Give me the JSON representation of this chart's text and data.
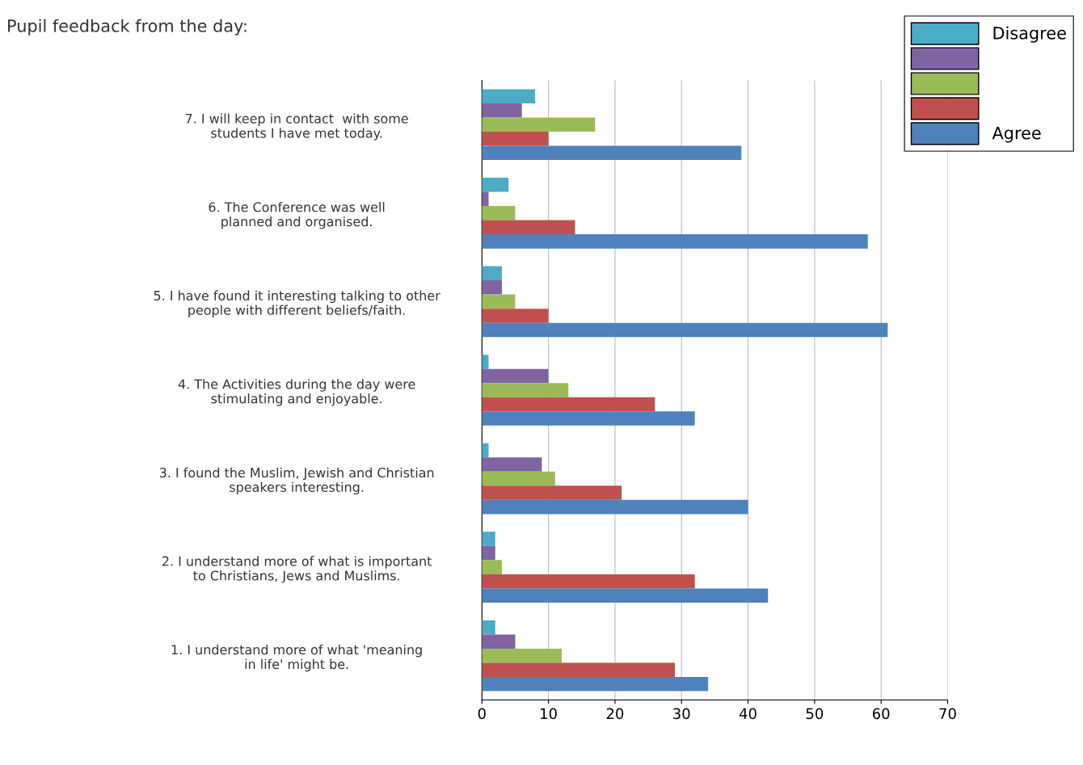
{
  "chart_data": {
    "type": "bar",
    "orientation": "horizontal",
    "title": "Pupil feedback from the day:",
    "categories": [
      "7. I will keep in contact  with some students I have met today.",
      "6. The Conference was well planned and organised.",
      "5. I have found it interesting talking to other people with different beliefs/faith.",
      "4. The Activities during the day were stimulating and enjoyable.",
      "3. I found the Muslim, Jewish and Christian speakers interesting.",
      "2. I understand more of what is important to Christians, Jews and Muslims.",
      "1. I understand more of what 'meaning in life' might be."
    ],
    "series": [
      {
        "name": "Disagree",
        "color": "#4bacc6",
        "values": [
          8,
          4,
          3,
          1,
          1,
          2,
          2
        ]
      },
      {
        "color": "#8064a2",
        "values": [
          6,
          1,
          3,
          10,
          9,
          2,
          5
        ]
      },
      {
        "color": "#9bbb59",
        "values": [
          17,
          5,
          5,
          13,
          11,
          3,
          12
        ]
      },
      {
        "color": "#c0504d",
        "values": [
          10,
          14,
          10,
          26,
          21,
          32,
          29
        ]
      },
      {
        "name": "Agree",
        "color": "#4f81bd",
        "values": [
          39,
          58,
          61,
          32,
          40,
          43,
          34
        ]
      }
    ],
    "xlim": [
      0,
      70
    ],
    "xticks": [
      0,
      10,
      20,
      30,
      40,
      50,
      60,
      70
    ],
    "grid": "x",
    "legend": "top right"
  }
}
